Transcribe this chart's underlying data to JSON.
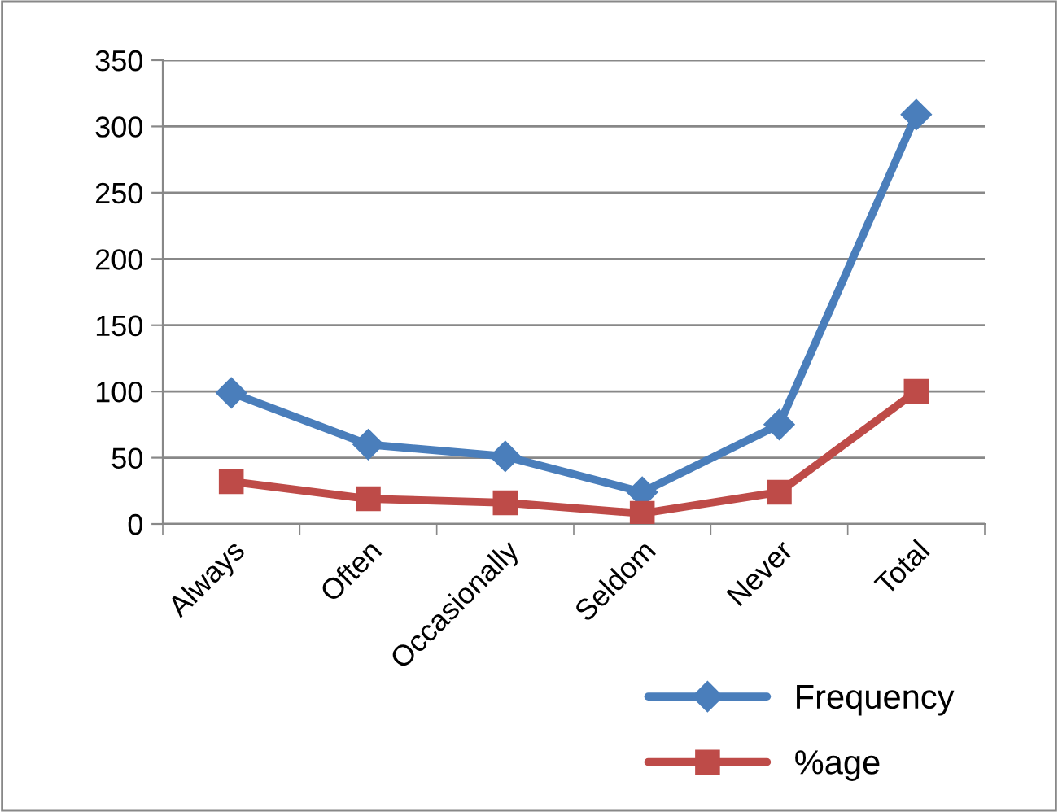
{
  "chart_data": {
    "type": "line",
    "categories": [
      "Always",
      "Often",
      "Occasionally",
      "Seldom",
      "Never",
      "Total"
    ],
    "series": [
      {
        "name": "Frequency",
        "color": "#4a7ebb",
        "marker": "diamond",
        "values": [
          99,
          60,
          51,
          24,
          75,
          309
        ]
      },
      {
        "name": "%age",
        "color": "#be4b48",
        "marker": "square",
        "values": [
          32,
          19,
          16,
          8,
          24,
          100
        ]
      }
    ],
    "ylim": [
      0,
      350
    ],
    "yticks": [
      0,
      50,
      100,
      150,
      200,
      250,
      300,
      350
    ],
    "grid": "y",
    "legend": "bottom right"
  }
}
